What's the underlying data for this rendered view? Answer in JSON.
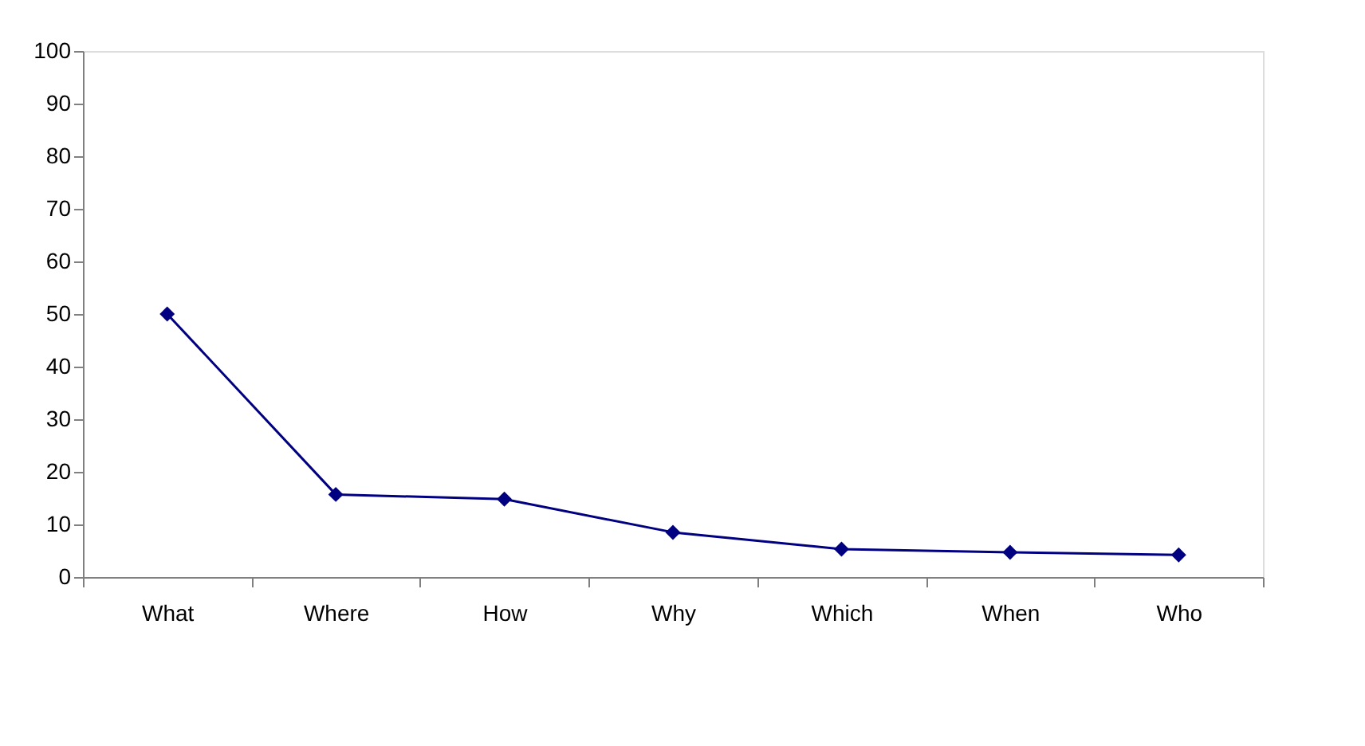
{
  "chart_data": {
    "type": "line",
    "categories": [
      "What",
      "Where",
      "How",
      "Why",
      "Which",
      "When",
      "Who"
    ],
    "series": [
      {
        "color": "#000080",
        "values": [
          50,
          15.7,
          14.8,
          8.5,
          5.3,
          4.7,
          4.2
        ]
      }
    ],
    "ylim": [
      0,
      100
    ],
    "yticks": [
      0,
      10,
      20,
      30,
      40,
      50,
      60,
      70,
      80,
      90,
      100
    ],
    "grid": false,
    "marker": "diamond",
    "line_style": "solid"
  }
}
